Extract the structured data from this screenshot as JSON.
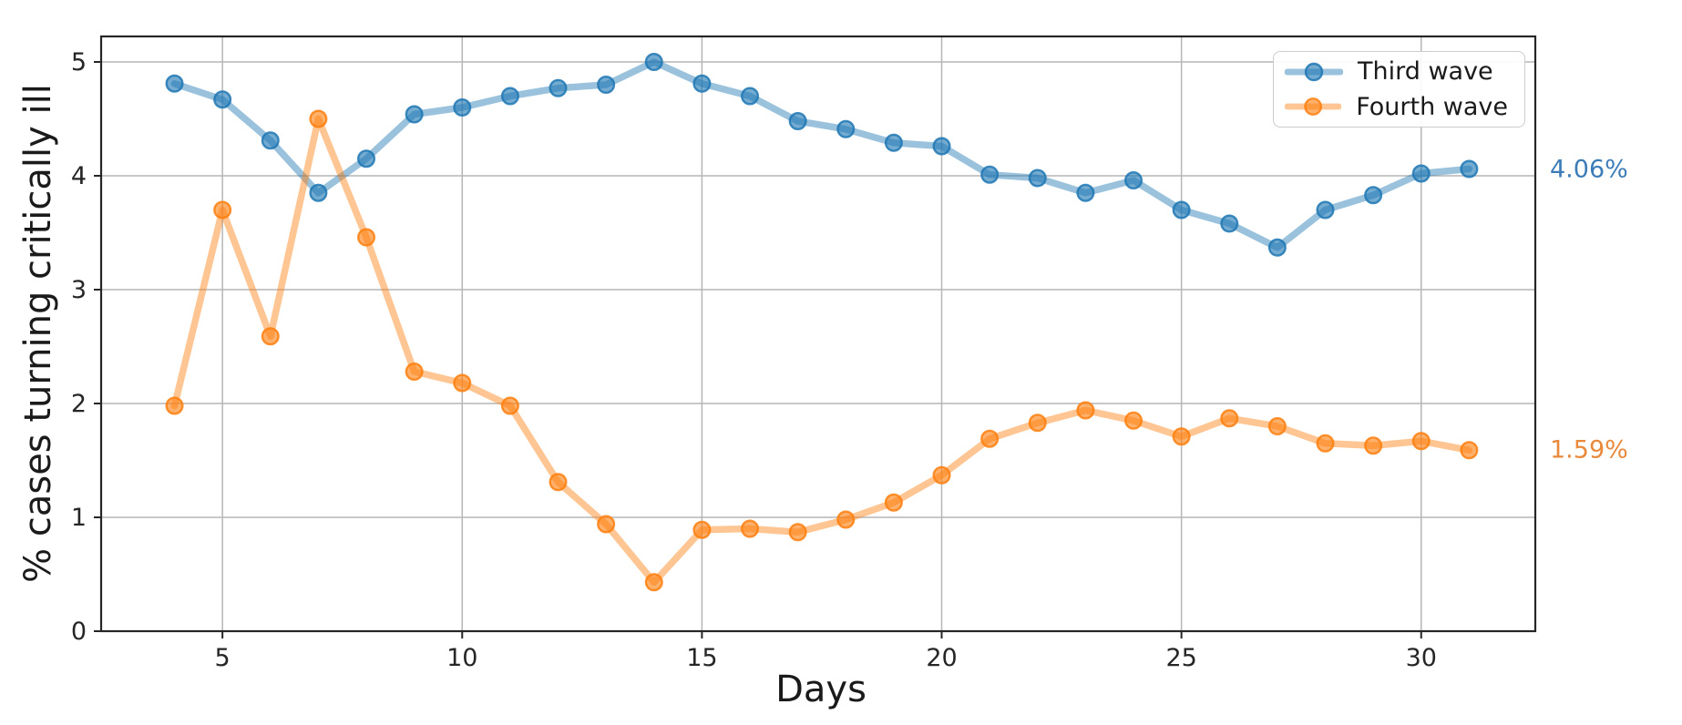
{
  "figure": {
    "background": "#ffffff",
    "spine_color": "#262626",
    "grid_color": "#b6b6b6",
    "tick_label_color": "#262626"
  },
  "chart_data": {
    "type": "line",
    "title": "",
    "xlabel": "Days",
    "ylabel": "% cases turning critically ill",
    "x": [
      4,
      5,
      6,
      7,
      8,
      9,
      10,
      11,
      12,
      13,
      14,
      15,
      16,
      17,
      18,
      19,
      20,
      21,
      22,
      23,
      24,
      25,
      26,
      27,
      28,
      29,
      30,
      31
    ],
    "series": [
      {
        "name": "Third wave",
        "color": "#1f77b4",
        "values": [
          4.81,
          4.67,
          4.31,
          3.85,
          4.15,
          4.54,
          4.6,
          4.7,
          4.77,
          4.8,
          5.0,
          4.81,
          4.7,
          4.48,
          4.41,
          4.29,
          4.26,
          4.01,
          3.98,
          3.85,
          3.96,
          3.7,
          3.58,
          3.37,
          3.7,
          3.83,
          4.02,
          4.06
        ]
      },
      {
        "name": "Fourth wave",
        "color": "#ff7f0e",
        "values": [
          1.98,
          3.7,
          2.59,
          4.5,
          3.46,
          2.28,
          2.18,
          1.98,
          1.31,
          0.94,
          0.43,
          0.89,
          0.9,
          0.87,
          0.98,
          1.13,
          1.37,
          1.69,
          1.83,
          1.94,
          1.85,
          1.71,
          1.87,
          1.8,
          1.65,
          1.63,
          1.67,
          1.59
        ]
      }
    ],
    "xticks": [
      5,
      10,
      15,
      20,
      25,
      30
    ],
    "yticks": [
      0,
      1,
      2,
      3,
      4,
      5
    ],
    "xlim": [
      2.47,
      32.38
    ],
    "ylim": [
      0,
      5.224
    ],
    "grid": true,
    "legend_position": "upper right",
    "annotations": [
      {
        "text": "4.06%",
        "color": "#3c7cb8",
        "series": "Third wave"
      },
      {
        "text": "1.59%",
        "color": "#e8893c",
        "series": "Fourth wave"
      }
    ]
  }
}
